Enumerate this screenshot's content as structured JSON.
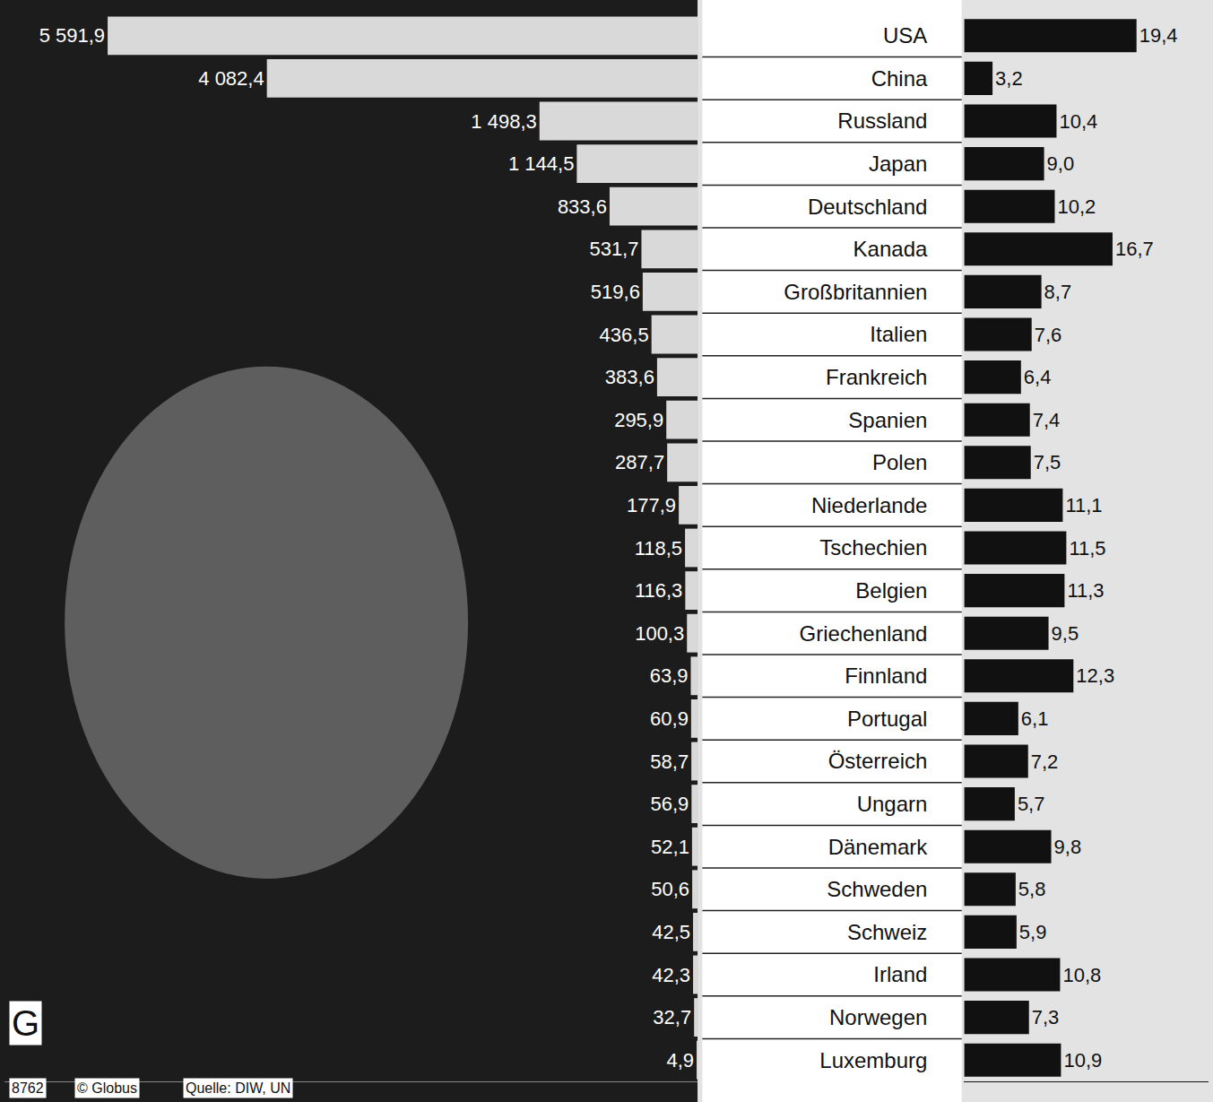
{
  "chart_data": [
    {
      "type": "bar",
      "orientation": "horizontal",
      "color": "#d9d9d9",
      "data_labels": true,
      "tick_labels": false,
      "categories": [
        "USA",
        "China",
        "Russland",
        "Japan",
        "Deutschland",
        "Kanada",
        "Großbritannien",
        "Italien",
        "Frankreich",
        "Spanien",
        "Polen",
        "Niederlande",
        "Tschechien",
        "Belgien",
        "Griechenland",
        "Finnland",
        "Portugal",
        "Österreich",
        "Ungarn",
        "Dänemark",
        "Schweden",
        "Schweiz",
        "Irland",
        "Norwegen",
        "Luxemburg"
      ],
      "values": [
        5591.9,
        4082.4,
        1498.3,
        1144.5,
        833.6,
        531.7,
        519.6,
        436.5,
        383.6,
        295.9,
        287.7,
        177.9,
        118.5,
        116.3,
        100.3,
        63.9,
        60.9,
        58.7,
        56.9,
        52.1,
        50.6,
        42.5,
        42.3,
        32.7,
        4.9
      ],
      "value_labels": [
        "5 591,9",
        "4 082,4",
        "1 498,3",
        "1 144,5",
        "833,6",
        "531,7",
        "519,6",
        "436,5",
        "383,6",
        "295,9",
        "287,7",
        "177,9",
        "118,5",
        "116,3",
        "100,3",
        "63,9",
        "60,9",
        "58,7",
        "56,9",
        "52,1",
        "50,6",
        "42,5",
        "42,3",
        "32,7",
        "4,9"
      ],
      "xlim": [
        0,
        6570
      ],
      "annotations": [
        "G",
        "8762",
        "© Globus",
        "Quelle: DIW, UN"
      ]
    },
    {
      "type": "bar",
      "orientation": "horizontal",
      "color": "#111111",
      "data_labels": true,
      "tick_labels": "y",
      "categories": [
        "USA",
        "China",
        "Russland",
        "Japan",
        "Deutschland",
        "Kanada",
        "Großbritannien",
        "Italien",
        "Frankreich",
        "Spanien",
        "Polen",
        "Niederlande",
        "Tschechien",
        "Belgien",
        "Griechenland",
        "Finnland",
        "Portugal",
        "Österreich",
        "Ungarn",
        "Dänemark",
        "Schweden",
        "Schweiz",
        "Irland",
        "Norwegen",
        "Luxemburg"
      ],
      "values": [
        19.4,
        3.2,
        10.4,
        9.0,
        10.2,
        16.7,
        8.7,
        7.6,
        6.4,
        7.4,
        7.5,
        11.1,
        11.5,
        11.3,
        9.5,
        12.3,
        6.1,
        7.2,
        5.7,
        9.8,
        5.8,
        5.9,
        10.8,
        7.3,
        10.9
      ],
      "value_labels": [
        "19,4",
        "3,2",
        "10,4",
        "9,0",
        "10,2",
        "16,7",
        "8,7",
        "7,6",
        "6,4",
        "7,4",
        "7,5",
        "11,1",
        "11,5",
        "11,3",
        "9,5",
        "12,3",
        "6,1",
        "7,2",
        "5,7",
        "9,8",
        "5,8",
        "5,9",
        "10,8",
        "7,3",
        "10,9"
      ],
      "xlim": [
        0,
        27.5
      ]
    }
  ]
}
